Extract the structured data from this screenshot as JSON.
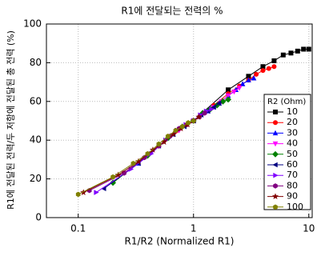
{
  "chart_data": {
    "type": "scatter-line",
    "title": "R1에 전달되는 전력의 %",
    "xlabel": "R1/R2 (Normalized R1)",
    "ylabel": "R1에 전달된 전력/두 저항에 전달된 총 전력 (%)",
    "xlog": true,
    "xlim": [
      0.053,
      10.7
    ],
    "xticks": [
      0.1,
      1,
      10
    ],
    "ylim": [
      0,
      100
    ],
    "yticks": [
      0,
      20,
      40,
      60,
      80,
      100
    ],
    "grid": true,
    "legend_title": "R2 (Ohm)",
    "legend": "lower right",
    "series": [
      {
        "name": "10",
        "color": "#000000",
        "marker": "square",
        "x": [
          1,
          2,
          3,
          4,
          5,
          6,
          7,
          8,
          9,
          10
        ],
        "values": [
          50,
          66,
          73,
          78,
          81,
          84,
          85,
          86,
          87,
          87
        ]
      },
      {
        "name": "20",
        "color": "#ff0000",
        "marker": "circle",
        "x": [
          0.5,
          1,
          1.5,
          2,
          2.5,
          3,
          3.5,
          4,
          4.5,
          5
        ],
        "values": [
          37,
          50,
          58,
          64,
          68,
          71,
          74,
          76,
          77,
          78
        ]
      },
      {
        "name": "30",
        "color": "#0000ff",
        "marker": "triangle-up",
        "x": [
          0.333,
          0.667,
          1,
          1.333,
          1.667,
          2,
          2.333,
          2.667,
          3,
          3.333
        ],
        "values": [
          28,
          43,
          50,
          55,
          59,
          63,
          66,
          69,
          71,
          72
        ]
      },
      {
        "name": "40",
        "color": "#ff00ff",
        "marker": "triangle-down",
        "x": [
          0.25,
          0.5,
          0.75,
          1,
          1.25,
          1.5,
          1.75,
          2,
          2.25,
          2.5
        ],
        "values": [
          23,
          37,
          45,
          50,
          54,
          57,
          60,
          63,
          65,
          67
        ]
      },
      {
        "name": "50",
        "color": "#008000",
        "marker": "diamond",
        "x": [
          0.2,
          0.4,
          0.6,
          0.8,
          1,
          1.2,
          1.4,
          1.6,
          1.8,
          2
        ],
        "values": [
          18,
          32,
          41,
          47,
          50,
          54,
          56,
          58,
          60,
          61
        ]
      },
      {
        "name": "60",
        "color": "#000080",
        "marker": "triangle-left",
        "x": [
          0.167,
          0.333,
          0.5,
          0.667,
          0.833,
          1,
          1.167,
          1.333,
          1.5,
          1.667
        ],
        "values": [
          15,
          28,
          37,
          43,
          47,
          50,
          53,
          55,
          57,
          59
        ]
      },
      {
        "name": "70",
        "color": "#8000ff",
        "marker": "triangle-right",
        "x": [
          0.143,
          0.286,
          0.429,
          0.571,
          0.714,
          0.857,
          1,
          1.143,
          1.286,
          1.429
        ],
        "values": [
          13,
          25,
          33,
          40,
          45,
          48,
          50,
          53,
          55,
          56
        ]
      },
      {
        "name": "80",
        "color": "#800080",
        "marker": "hexagon",
        "x": [
          0.125,
          0.25,
          0.375,
          0.5,
          0.625,
          0.75,
          0.875,
          1,
          1.125,
          1.25
        ],
        "values": [
          14,
          23,
          31,
          37,
          42,
          46,
          48,
          50,
          52,
          54
        ]
      },
      {
        "name": "90",
        "color": "#800000",
        "marker": "star",
        "x": [
          0.111,
          0.222,
          0.333,
          0.444,
          0.556,
          0.667,
          0.778,
          0.889,
          1,
          1.111
        ],
        "values": [
          13,
          22,
          29,
          35,
          39,
          43,
          46,
          48,
          50,
          52
        ]
      },
      {
        "name": "100",
        "color": "#808000",
        "marker": "hexagon",
        "x": [
          0.1,
          0.2,
          0.3,
          0.4,
          0.5,
          0.6,
          0.7,
          0.8,
          0.9,
          1
        ],
        "values": [
          12,
          21,
          28,
          33,
          38,
          42,
          45,
          47,
          49,
          50
        ]
      }
    ]
  }
}
